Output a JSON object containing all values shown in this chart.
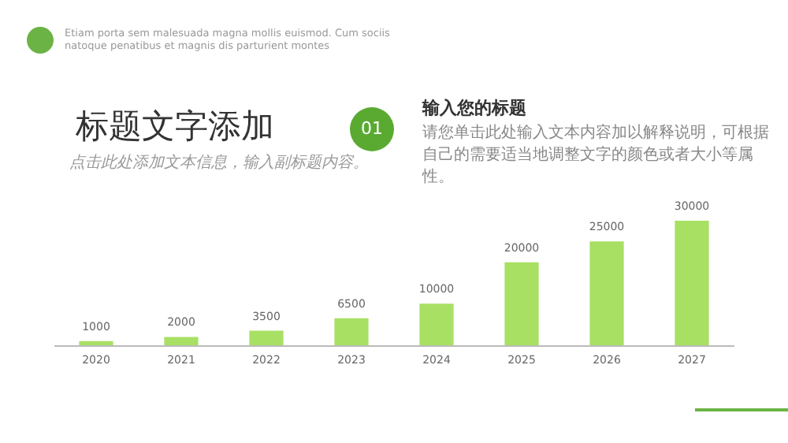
{
  "chart_data": {
    "type": "bar",
    "title": "标题文字添加",
    "subtitle": "点击此处添加文本信息，输入副标题内容。",
    "annotations": [
      "Etiam porta sem malesuada magna mollis euismod. Cum sociis natoque penatibus et magnis dis parturient montes",
      "01",
      "输入您的标题",
      "请您单击此处输入文本内容加以解释说明，可根据自己的需要适当地调整文字的颜色或者大小等属性。"
    ],
    "categories": [
      "2020",
      "2021",
      "2022",
      "2023",
      "2024",
      "2025",
      "2026",
      "2027"
    ],
    "values": [
      1000,
      2000,
      3500,
      6500,
      10000,
      20000,
      25000,
      30000
    ],
    "color": "#a8e063",
    "ylim": [
      0,
      30000
    ],
    "data_labels": true,
    "tick_labels": "x",
    "grid": false
  }
}
